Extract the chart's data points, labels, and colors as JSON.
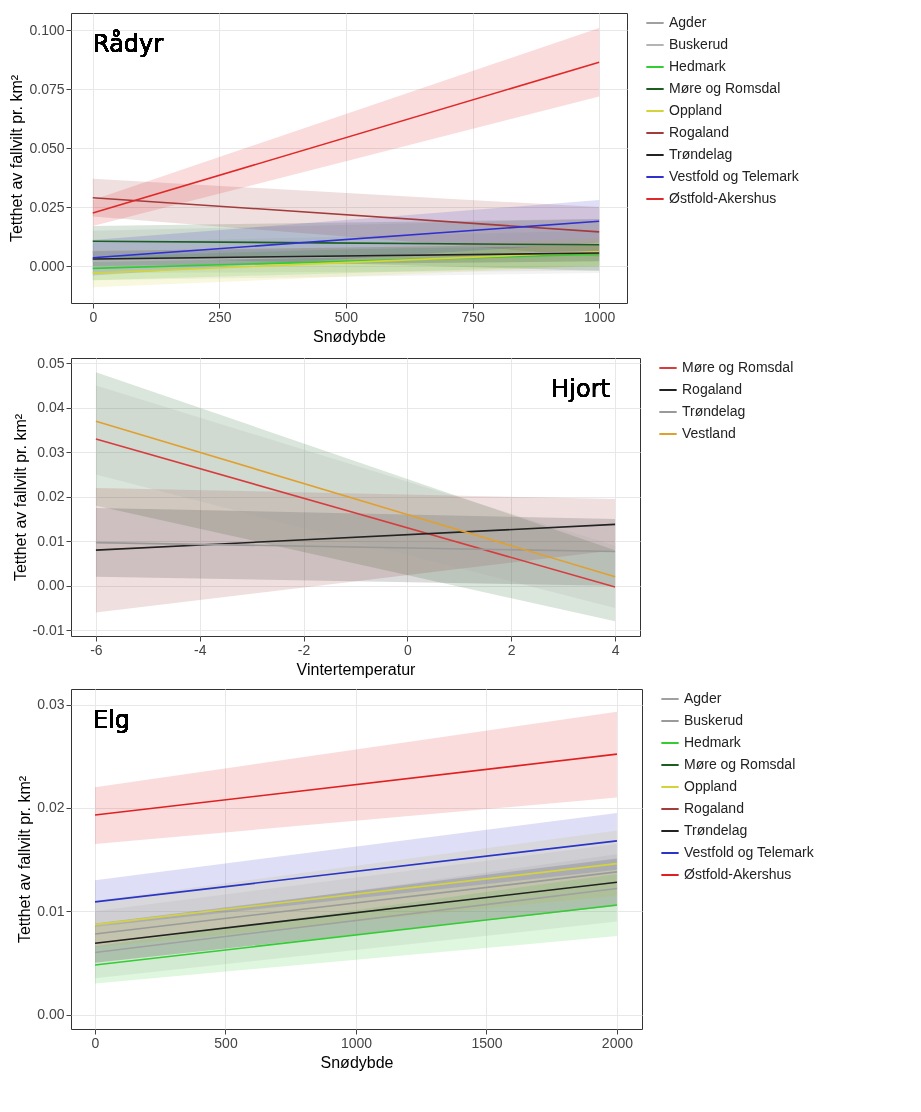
{
  "chart_data": [
    {
      "type": "line",
      "annotations": [
        "Rådyr"
      ],
      "xlabel": "Snødybde",
      "ylabel": "Tetthet av fallvilt pr. km²",
      "xlim": [
        -43,
        1055
      ],
      "ylim": [
        -0.0157,
        0.1074
      ],
      "xticks": [
        0,
        250,
        500,
        750,
        1000
      ],
      "yticks": [
        {
          "value": 0,
          "label": "0.000"
        },
        {
          "value": 0.025,
          "label": "0.025"
        },
        {
          "value": 0.05,
          "label": "0.050"
        },
        {
          "value": 0.075,
          "label": "0.075"
        },
        {
          "value": 0.1,
          "label": "0.100"
        }
      ],
      "grid": true,
      "legend": "right",
      "x": [
        0,
        1000
      ],
      "series": [
        {
          "name": "Agder",
          "color": "#a0a0a0",
          "values": [
            0.006,
            0.009
          ],
          "lower": [
            -0.003,
            -0.002
          ],
          "upper": [
            0.015,
            0.02
          ]
        },
        {
          "name": "Buskerud",
          "color": "#b4b4b4",
          "values": [
            0.002,
            0.006
          ],
          "lower": [
            -0.006,
            -0.003
          ],
          "upper": [
            0.01,
            0.015
          ]
        },
        {
          "name": "Hedmark",
          "color": "#33cc33",
          "values": [
            -0.001,
            0.005
          ],
          "lower": [
            -0.006,
            0.0
          ],
          "upper": [
            0.004,
            0.01
          ]
        },
        {
          "name": "Møre og Romsdal",
          "color": "#1b5e20",
          "values": [
            0.0105,
            0.009
          ],
          "lower": [
            0.004,
            -0.002
          ],
          "upper": [
            0.017,
            0.02
          ]
        },
        {
          "name": "Oppland",
          "color": "#d4d43a",
          "values": [
            -0.003,
            0.006
          ],
          "lower": [
            -0.009,
            0.0
          ],
          "upper": [
            0.003,
            0.012
          ]
        },
        {
          "name": "Rogaland",
          "color": "#a23b3b",
          "values": [
            0.029,
            0.0145
          ],
          "lower": [
            0.021,
            0.004
          ],
          "upper": [
            0.037,
            0.025
          ]
        },
        {
          "name": "Trøndelag",
          "color": "#222222",
          "values": [
            0.003,
            0.0055
          ],
          "lower": [
            0.0,
            0.002
          ],
          "upper": [
            0.006,
            0.009
          ]
        },
        {
          "name": "Vestfold og Telemark",
          "color": "#3030d0",
          "values": [
            0.0035,
            0.019
          ],
          "lower": [
            -0.004,
            0.01
          ],
          "upper": [
            0.011,
            0.028
          ]
        },
        {
          "name": "Østfold-Akershus",
          "color": "#e02828",
          "values": [
            0.0225,
            0.0865
          ],
          "lower": [
            0.017,
            0.072
          ],
          "upper": [
            0.028,
            0.101
          ]
        }
      ]
    },
    {
      "type": "line",
      "annotations": [
        "Hjort"
      ],
      "xlabel": "Vintertemperatur",
      "ylabel": "Tetthet av fallvilt pr. km²",
      "xlim": [
        -6.48,
        4.48
      ],
      "ylim": [
        -0.0113,
        0.0512
      ],
      "xticks": [
        -6,
        -4,
        -2,
        0,
        2,
        4
      ],
      "yticks": [
        {
          "value": -0.01,
          "label": "-0.01"
        },
        {
          "value": 0,
          "label": "0.00"
        },
        {
          "value": 0.01,
          "label": "0.01"
        },
        {
          "value": 0.02,
          "label": "0.02"
        },
        {
          "value": 0.03,
          "label": "0.03"
        },
        {
          "value": 0.04,
          "label": "0.04"
        },
        {
          "value": 0.05,
          "label": "0.05"
        }
      ],
      "grid": true,
      "legend": "right",
      "x": [
        -6,
        4
      ],
      "series": [
        {
          "name": "Møre og Romsdal",
          "color": "#d63c3c",
          "values": [
            0.033,
            -0.0003
          ],
          "lower": [
            0.018,
            -0.008
          ],
          "upper": [
            0.048,
            0.008
          ]
        },
        {
          "name": "Rogaland",
          "color": "#222222",
          "values": [
            0.008,
            0.0138
          ],
          "lower": [
            -0.006,
            0.008
          ],
          "upper": [
            0.022,
            0.0195
          ]
        },
        {
          "name": "Trøndelag",
          "color": "#999999",
          "values": [
            0.0097,
            0.0077
          ],
          "lower": [
            0.002,
            0.0
          ],
          "upper": [
            0.0175,
            0.015
          ]
        },
        {
          "name": "Vestland",
          "color": "#e0a030",
          "values": [
            0.037,
            0.002
          ],
          "lower": [
            0.025,
            -0.005
          ],
          "upper": [
            0.045,
            0.009
          ]
        }
      ]
    },
    {
      "type": "line",
      "annotations": [
        "Elg"
      ],
      "xlabel": "Snødybde",
      "ylabel": "Tetthet av fallvilt pr. km²",
      "xlim": [
        -92,
        2096
      ],
      "ylim": [
        -0.0014,
        0.0315
      ],
      "xticks": [
        0,
        500,
        1000,
        1500,
        2000
      ],
      "yticks": [
        {
          "value": 0,
          "label": "0.00"
        },
        {
          "value": 0.01,
          "label": "0.01"
        },
        {
          "value": 0.02,
          "label": "0.02"
        },
        {
          "value": 0.03,
          "label": "0.03"
        }
      ],
      "grid": true,
      "legend": "right",
      "x": [
        0,
        2000
      ],
      "series": [
        {
          "name": "Agder",
          "color": "#a0a0a0",
          "values": [
            0.006,
            0.0122
          ],
          "lower": [
            0.0035,
            0.009
          ],
          "upper": [
            0.0085,
            0.0155
          ]
        },
        {
          "name": "Buskerud",
          "color": "#9a9a9a",
          "values": [
            0.0078,
            0.0138
          ],
          "lower": [
            0.005,
            0.0105
          ],
          "upper": [
            0.01,
            0.0165
          ]
        },
        {
          "name": "Hedmark",
          "color": "#33cc33",
          "values": [
            0.0048,
            0.0106
          ],
          "lower": [
            0.003,
            0.0076
          ],
          "upper": [
            0.0066,
            0.0136
          ]
        },
        {
          "name": "Møre og Romsdal",
          "color": "#1b5e20",
          "values": [
            null,
            null
          ]
        },
        {
          "name": "Oppland",
          "color": "#d4d43a",
          "values": [
            0.0087,
            0.0146
          ],
          "lower": [
            0.0065,
            0.0115
          ],
          "upper": [
            0.011,
            0.0178
          ]
        },
        {
          "name": "Rogaland",
          "color": "#a23b3b",
          "values": [
            null,
            null
          ]
        },
        {
          "name": "Trøndelag",
          "color": "#222222",
          "values": [
            0.0069,
            0.0128
          ],
          "lower": [
            0.005,
            0.0105
          ],
          "upper": [
            0.0088,
            0.0151
          ]
        },
        {
          "name": "Vestfold og Telemark",
          "color": "#2a35c8",
          "values": [
            0.0109,
            0.0168
          ],
          "lower": [
            0.0085,
            0.014
          ],
          "upper": [
            0.013,
            0.0195
          ]
        },
        {
          "name": "Østfold-Akershus",
          "color": "#e02020",
          "values": [
            0.0193,
            0.0252
          ],
          "lower": [
            0.0165,
            0.021
          ],
          "upper": [
            0.022,
            0.0293
          ]
        }
      ]
    }
  ]
}
